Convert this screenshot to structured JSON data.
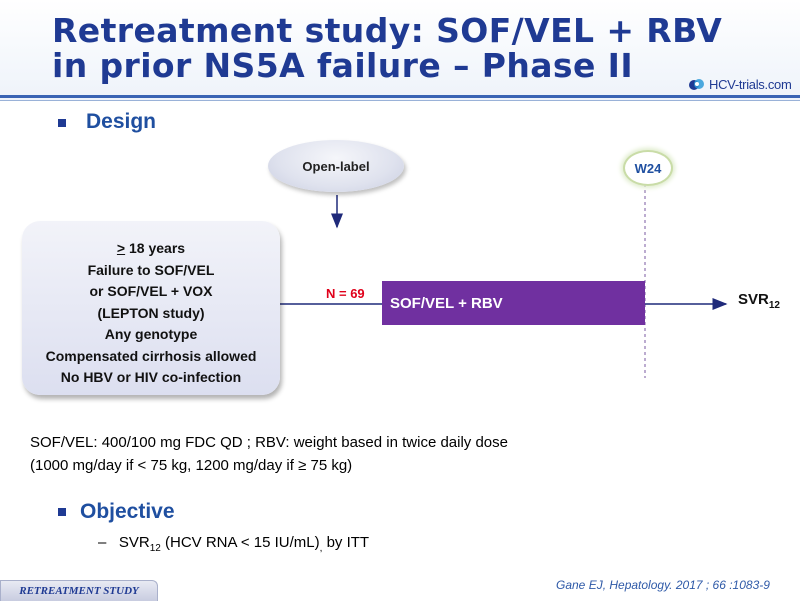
{
  "title": {
    "line1": "Retreatment study: SOF/VEL + RBV",
    "line2": "in prior NS5A failure – Phase II"
  },
  "logo": {
    "text": "HCV-trials.com",
    "icon": "hcv-trials-logo-icon"
  },
  "sections": {
    "design_label": "Design",
    "objective_label": "Objective"
  },
  "diagram": {
    "open_label": "Open-label",
    "week_marker": "W24",
    "criteria": {
      "age_symbol": ">",
      "age_rest": " 18 years",
      "lines": [
        "Failure to SOF/VEL",
        "or SOF/VEL + VOX",
        "(LEPTON study)",
        "Any genotype",
        "Compensated cirrhosis allowed",
        "No HBV or HIV co-infection"
      ]
    },
    "n_label": "N = 69",
    "arm_label": "SOF/VEL + RBV",
    "outcome": {
      "main": "SVR",
      "sub": "12"
    },
    "colors": {
      "arm": "#7030a0",
      "arrow": "#1f2a7a",
      "n_label": "#e0001a"
    }
  },
  "notes": {
    "line1": "SOF/VEL: 400/100 mg FDC QD ; RBV: weight based in twice daily dose",
    "line2": "(1000 mg/day if < 75 kg, 1200 mg/day if ≥ 75 kg)"
  },
  "objective": {
    "dash": "–",
    "svr_main": "SVR",
    "svr_sub": "12",
    "text_rest": " (HCV RNA < 15 IU/mL)",
    "comma": ",",
    "itt": " by ITT"
  },
  "citation": "Gane EJ, Hepatology. 2017 ; 66 :1083-9",
  "footer_tag": "RETREATMENT STUDY"
}
